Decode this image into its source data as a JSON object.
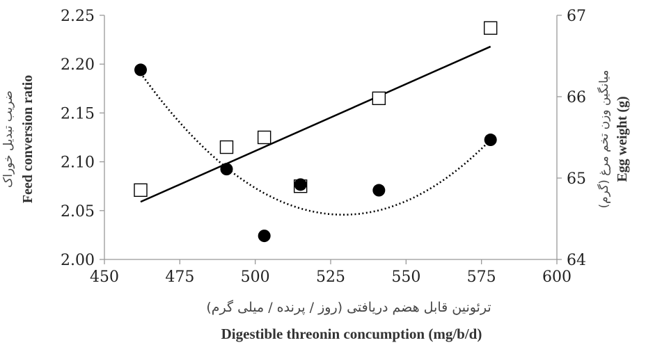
{
  "chart_data": {
    "type": "scatter",
    "x_label_fa": "ترئونین قابل هضم دریافتی (روز / پرنده / میلی گرم)",
    "x_label_en": "Digestible threonin concumption (mg/b/d)",
    "y_left_label_fa": "ضریب تبدیل خوراک",
    "y_left_label_en": "Feed conversion ratio",
    "y_right_label_fa": "میانگین وزن تخم مرغ (گرم)",
    "y_right_label_en": "Egg weight (g)",
    "xlim": [
      450,
      600
    ],
    "x_ticks": [
      "450",
      "475",
      "500",
      "525",
      "550",
      "575",
      "600"
    ],
    "y_left_lim": [
      2.0,
      2.25
    ],
    "y_left_ticks": [
      "2.00",
      "2.05",
      "2.10",
      "2.15",
      "2.20",
      "2.25"
    ],
    "y_right_lim": [
      64,
      67
    ],
    "y_right_ticks": [
      "64",
      "65",
      "66",
      "67"
    ],
    "grid": false,
    "series": [
      {
        "axis": "left",
        "marker": "open-square",
        "x": [
          462,
          490.5,
          503,
          515,
          541,
          578
        ],
        "y": [
          2.071,
          2.115,
          2.125,
          2.075,
          2.165,
          2.237
        ],
        "trend": {
          "type": "linear",
          "style": "solid",
          "x_range": [
            462,
            578
          ],
          "y_range": [
            2.059,
            2.218
          ]
        }
      },
      {
        "axis": "right",
        "marker": "filled-circle",
        "x": [
          462,
          490.5,
          503,
          515,
          541,
          578
        ],
        "y": [
          66.33,
          65.11,
          64.29,
          64.92,
          64.85,
          65.47
        ],
        "trend": {
          "type": "quadratic",
          "style": "dotted",
          "points": [
            [
              462,
              66.29
            ],
            [
              528,
              64.55
            ],
            [
              578,
              65.47
            ]
          ]
        }
      }
    ]
  }
}
